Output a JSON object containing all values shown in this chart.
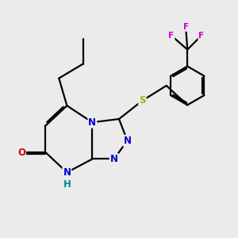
{
  "bg_color": "#ebebeb",
  "bond_color": "#000000",
  "bond_width": 1.6,
  "atom_colors": {
    "N": "#0000cc",
    "O": "#cc0000",
    "S": "#aaaa00",
    "F": "#cc00cc",
    "C": "#000000",
    "H": "#008888"
  },
  "font_size": 8.5,
  "fig_size": [
    3.0,
    3.0
  ],
  "dpi": 100
}
